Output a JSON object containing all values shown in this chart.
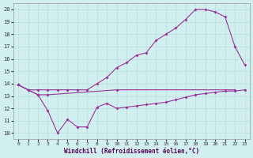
{
  "xlabel": "Windchill (Refroidissement éolien,°C)",
  "xlim": [
    -0.5,
    23.5
  ],
  "ylim": [
    9.5,
    20.5
  ],
  "xticks": [
    0,
    1,
    2,
    3,
    4,
    5,
    6,
    7,
    8,
    9,
    10,
    11,
    12,
    13,
    14,
    15,
    16,
    17,
    18,
    19,
    20,
    21,
    22,
    23
  ],
  "yticks": [
    10,
    11,
    12,
    13,
    14,
    15,
    16,
    17,
    18,
    19,
    20
  ],
  "bg_color": "#d0efee",
  "line_color": "#993399",
  "grid_color": "#b8dede",
  "line1_x": [
    0,
    1,
    2,
    3,
    10,
    22
  ],
  "line1_y": [
    13.9,
    13.5,
    13.1,
    13.1,
    13.5,
    13.5
  ],
  "line2_x": [
    0,
    1,
    2,
    3,
    4,
    5,
    6,
    7,
    8,
    9,
    10,
    11,
    12,
    13,
    14,
    15,
    16,
    17,
    18,
    19,
    20,
    21,
    22,
    23
  ],
  "line2_y": [
    13.9,
    13.5,
    13.1,
    11.8,
    10.0,
    11.1,
    10.5,
    10.5,
    12.1,
    12.4,
    12.0,
    12.1,
    12.2,
    12.3,
    12.4,
    12.5,
    12.7,
    12.9,
    13.1,
    13.2,
    13.3,
    13.4,
    13.4,
    13.5
  ],
  "line3_x": [
    0,
    1,
    2,
    3,
    4,
    5,
    6,
    7,
    8,
    9,
    10,
    11,
    12,
    13,
    14,
    15,
    16,
    17,
    18,
    19,
    20,
    21,
    22,
    23
  ],
  "line3_y": [
    13.9,
    13.5,
    13.5,
    13.5,
    13.5,
    13.5,
    13.5,
    13.5,
    14.0,
    14.5,
    15.3,
    15.7,
    16.3,
    16.5,
    17.5,
    18.0,
    18.5,
    19.2,
    20.0,
    20.0,
    19.8,
    19.4,
    17.0,
    15.5
  ]
}
